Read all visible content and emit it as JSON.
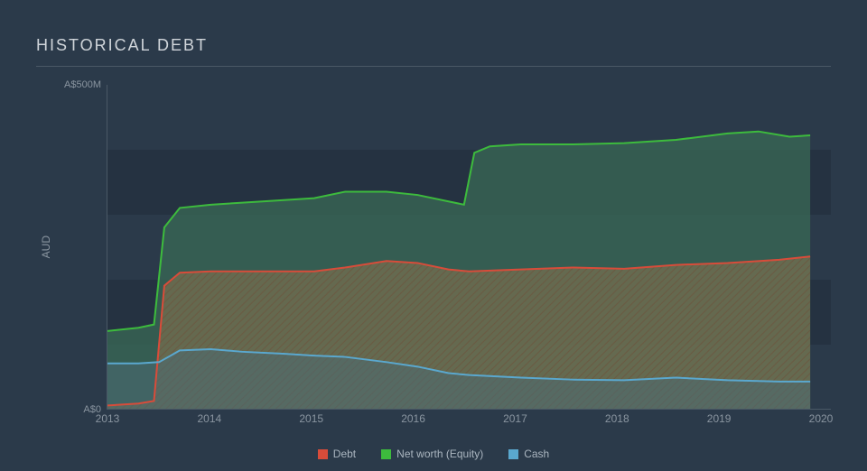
{
  "chart": {
    "type": "area",
    "title": "HISTORICAL DEBT",
    "title_fontsize": 18,
    "title_color": "#d0d5da",
    "background_color": "#2b3a4a",
    "grid_band_color": "rgba(0,0,0,0.12)",
    "axis_color": "#4a5866",
    "text_color": "#8a95a0",
    "ylabel": "AUD",
    "x": {
      "min": 2013,
      "max": 2020,
      "ticks": [
        2013,
        2014,
        2015,
        2016,
        2017,
        2018,
        2019,
        2020
      ]
    },
    "y": {
      "min": 0,
      "max": 500,
      "ticks": [
        {
          "v": 0,
          "label": "A$0"
        },
        {
          "v": 500,
          "label": "A$500M"
        }
      ],
      "bands": [
        {
          "from": 100,
          "to": 200
        },
        {
          "from": 300,
          "to": 400
        }
      ]
    },
    "series": [
      {
        "key": "equity",
        "label": "Net worth (Equity)",
        "stroke": "#3dbb3d",
        "fill": "#3a6a55",
        "fill_opacity": 0.75,
        "hatch": false,
        "line_width": 2,
        "points": [
          [
            2013.0,
            120
          ],
          [
            2013.3,
            125
          ],
          [
            2013.45,
            130
          ],
          [
            2013.55,
            280
          ],
          [
            2013.7,
            310
          ],
          [
            2014.0,
            315
          ],
          [
            2014.5,
            320
          ],
          [
            2015.0,
            325
          ],
          [
            2015.3,
            335
          ],
          [
            2015.7,
            335
          ],
          [
            2016.0,
            330
          ],
          [
            2016.3,
            320
          ],
          [
            2016.45,
            315
          ],
          [
            2016.55,
            395
          ],
          [
            2016.7,
            405
          ],
          [
            2017.0,
            408
          ],
          [
            2017.5,
            408
          ],
          [
            2018.0,
            410
          ],
          [
            2018.5,
            415
          ],
          [
            2019.0,
            425
          ],
          [
            2019.3,
            428
          ],
          [
            2019.6,
            420
          ],
          [
            2019.8,
            422
          ]
        ]
      },
      {
        "key": "debt",
        "label": "Debt",
        "stroke": "#d84c3a",
        "fill": "#a07a4e",
        "fill_opacity": 0.55,
        "hatch": true,
        "hatch_color": "#6a5a42",
        "line_width": 2,
        "points": [
          [
            2013.0,
            5
          ],
          [
            2013.3,
            8
          ],
          [
            2013.45,
            12
          ],
          [
            2013.55,
            190
          ],
          [
            2013.7,
            210
          ],
          [
            2014.0,
            212
          ],
          [
            2014.5,
            212
          ],
          [
            2015.0,
            212
          ],
          [
            2015.3,
            218
          ],
          [
            2015.7,
            228
          ],
          [
            2016.0,
            225
          ],
          [
            2016.3,
            215
          ],
          [
            2016.5,
            212
          ],
          [
            2017.0,
            215
          ],
          [
            2017.5,
            218
          ],
          [
            2018.0,
            216
          ],
          [
            2018.5,
            222
          ],
          [
            2019.0,
            225
          ],
          [
            2019.5,
            230
          ],
          [
            2019.8,
            235
          ]
        ]
      },
      {
        "key": "cash",
        "label": "Cash",
        "stroke": "#5aa8cf",
        "fill": "#4a6a72",
        "fill_opacity": 0.55,
        "hatch": false,
        "line_width": 2,
        "points": [
          [
            2013.0,
            70
          ],
          [
            2013.3,
            70
          ],
          [
            2013.5,
            72
          ],
          [
            2013.7,
            90
          ],
          [
            2014.0,
            92
          ],
          [
            2014.3,
            88
          ],
          [
            2014.7,
            85
          ],
          [
            2015.0,
            82
          ],
          [
            2015.3,
            80
          ],
          [
            2015.7,
            72
          ],
          [
            2016.0,
            65
          ],
          [
            2016.3,
            55
          ],
          [
            2016.5,
            52
          ],
          [
            2017.0,
            48
          ],
          [
            2017.5,
            45
          ],
          [
            2018.0,
            44
          ],
          [
            2018.5,
            48
          ],
          [
            2019.0,
            44
          ],
          [
            2019.5,
            42
          ],
          [
            2019.8,
            42
          ]
        ]
      }
    ],
    "legend": {
      "items": [
        {
          "key": "debt",
          "label": "Debt",
          "color": "#d84c3a"
        },
        {
          "key": "equity",
          "label": "Net worth (Equity)",
          "color": "#3dbb3d"
        },
        {
          "key": "cash",
          "label": "Cash",
          "color": "#5aa8cf"
        }
      ]
    }
  }
}
